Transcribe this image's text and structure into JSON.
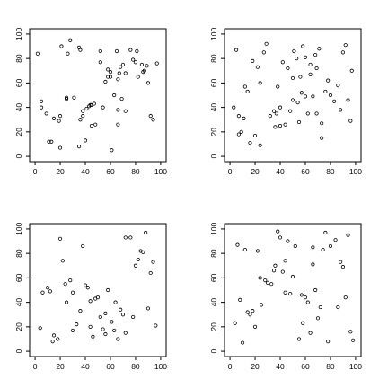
{
  "chart_data": [
    {
      "type": "scatter",
      "xlim": [
        0,
        100
      ],
      "ylim": [
        0,
        100
      ],
      "xticks": [
        "0",
        "20",
        "40",
        "60",
        "80",
        "100"
      ],
      "yticks": [
        "0",
        "20",
        "40",
        "60",
        "80",
        "100"
      ],
      "grid": false,
      "x": [
        2,
        5,
        13,
        15,
        20,
        21,
        25,
        26,
        28,
        35,
        38,
        41,
        43,
        45,
        47,
        52,
        56,
        58,
        60,
        65,
        66,
        67,
        68,
        70,
        72,
        76,
        78,
        80,
        81,
        82,
        85,
        86,
        87,
        89,
        90,
        92,
        94,
        97,
        5,
        9,
        11,
        19,
        20,
        25,
        31,
        35,
        36,
        36,
        38,
        40,
        44,
        45,
        48,
        52,
        54,
        58,
        60,
        61,
        63,
        66,
        66,
        69,
        72
      ],
      "y": [
        84,
        45,
        12,
        31,
        7,
        90,
        47,
        84,
        95,
        89,
        33,
        39,
        41,
        25,
        43,
        77,
        61,
        65,
        69,
        86,
        63,
        68,
        73,
        75,
        68,
        87,
        79,
        77,
        86,
        65,
        75,
        69,
        70,
        74,
        60,
        33,
        30,
        76,
        40,
        35,
        12,
        29,
        33,
        48,
        48,
        8,
        87,
        30,
        37,
        13,
        42,
        42,
        26,
        86,
        40,
        71,
        65,
        5,
        50,
        26,
        38,
        47,
        37
      ]
    },
    {
      "type": "scatter",
      "xlim": [
        0,
        100
      ],
      "ylim": [
        0,
        100
      ],
      "xticks": [
        "0",
        "20",
        "40",
        "60",
        "80",
        "100"
      ],
      "yticks": [
        "0",
        "20",
        "40",
        "60",
        "80",
        "100"
      ],
      "grid": false,
      "x": [
        3,
        5,
        7,
        9,
        11,
        14,
        16,
        18,
        20,
        22,
        24,
        27,
        29,
        32,
        35,
        36,
        38,
        40,
        42,
        44,
        46,
        48,
        50,
        51,
        53,
        55,
        57,
        58,
        60,
        62,
        64,
        66,
        68,
        69,
        71,
        73,
        76,
        78,
        80,
        83,
        86,
        88,
        90,
        92,
        94,
        96,
        97,
        7,
        12,
        24,
        37,
        40,
        50,
        54,
        56,
        60,
        64,
        69,
        73
      ],
      "y": [
        40,
        87,
        33,
        20,
        31,
        53,
        11,
        78,
        17,
        73,
        9,
        85,
        92,
        33,
        37,
        24,
        57,
        40,
        77,
        26,
        72,
        37,
        64,
        86,
        80,
        28,
        52,
        90,
        81,
        35,
        67,
        49,
        83,
        72,
        88,
        15,
        53,
        62,
        50,
        45,
        58,
        38,
        85,
        91,
        46,
        29,
        70,
        18,
        57,
        60,
        35,
        25,
        46,
        44,
        65,
        49,
        75,
        35,
        27
      ]
    },
    {
      "type": "scatter",
      "xlim": [
        0,
        100
      ],
      "ylim": [
        0,
        100
      ],
      "xticks": [
        "0",
        "20",
        "40",
        "60",
        "80",
        "100"
      ],
      "yticks": [
        "0",
        "20",
        "40",
        "60",
        "80",
        "100"
      ],
      "grid": false,
      "x": [
        4,
        10,
        12,
        15,
        18,
        20,
        22,
        25,
        28,
        30,
        33,
        36,
        38,
        40,
        42,
        44,
        46,
        48,
        50,
        52,
        54,
        56,
        58,
        61,
        63,
        66,
        68,
        70,
        72,
        76,
        78,
        80,
        82,
        84,
        86,
        88,
        90,
        92,
        94,
        96,
        6,
        14,
        24,
        30,
        44,
        56,
        64,
        72
      ],
      "y": [
        19,
        52,
        49,
        13,
        10,
        92,
        74,
        40,
        58,
        17,
        22,
        33,
        86,
        54,
        52,
        20,
        12,
        43,
        44,
        28,
        18,
        14,
        50,
        24,
        17,
        10,
        34,
        30,
        93,
        93,
        28,
        70,
        75,
        82,
        81,
        97,
        35,
        64,
        73,
        21,
        48,
        8,
        55,
        48,
        41,
        31,
        40,
        15
      ]
    },
    {
      "type": "scatter",
      "xlim": [
        0,
        100
      ],
      "ylim": [
        0,
        100
      ],
      "xticks": [
        "0",
        "20",
        "40",
        "60",
        "80",
        "100"
      ],
      "yticks": [
        "0",
        "20",
        "40",
        "60",
        "80",
        "100"
      ],
      "grid": false,
      "x": [
        4,
        6,
        10,
        12,
        14,
        16,
        18,
        20,
        22,
        25,
        28,
        30,
        33,
        36,
        38,
        40,
        42,
        44,
        46,
        48,
        50,
        52,
        55,
        57,
        60,
        62,
        64,
        66,
        68,
        70,
        72,
        74,
        76,
        78,
        80,
        84,
        86,
        88,
        90,
        92,
        94,
        96,
        98,
        8,
        24,
        35,
        44,
        58,
        66
      ],
      "y": [
        23,
        87,
        7,
        83,
        32,
        30,
        33,
        20,
        82,
        38,
        58,
        56,
        55,
        70,
        98,
        93,
        65,
        74,
        90,
        47,
        61,
        86,
        10,
        46,
        44,
        40,
        15,
        85,
        50,
        27,
        36,
        83,
        97,
        8,
        86,
        91,
        36,
        73,
        69,
        44,
        95,
        16,
        9,
        42,
        60,
        66,
        48,
        23,
        71
      ]
    }
  ]
}
